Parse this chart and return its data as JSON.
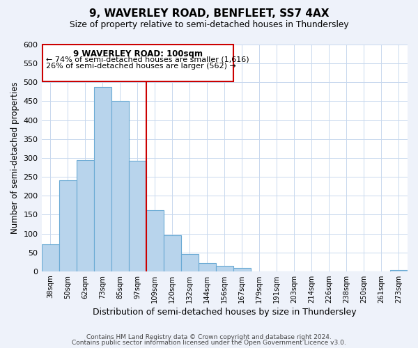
{
  "title": "9, WAVERLEY ROAD, BENFLEET, SS7 4AX",
  "subtitle": "Size of property relative to semi-detached houses in Thundersley",
  "xlabel": "Distribution of semi-detached houses by size in Thundersley",
  "ylabel": "Number of semi-detached properties",
  "bin_labels": [
    "38sqm",
    "50sqm",
    "62sqm",
    "73sqm",
    "85sqm",
    "97sqm",
    "109sqm",
    "120sqm",
    "132sqm",
    "144sqm",
    "156sqm",
    "167sqm",
    "179sqm",
    "191sqm",
    "203sqm",
    "214sqm",
    "226sqm",
    "238sqm",
    "250sqm",
    "261sqm",
    "273sqm"
  ],
  "bar_heights": [
    72,
    240,
    295,
    488,
    450,
    293,
    162,
    96,
    46,
    22,
    15,
    9,
    0,
    0,
    0,
    0,
    0,
    0,
    0,
    0,
    3
  ],
  "bar_color": "#b8d4ec",
  "bar_edge_color": "#6aaad4",
  "marker_index": 5,
  "marker_color": "#cc0000",
  "ylim": [
    0,
    600
  ],
  "yticks": [
    0,
    50,
    100,
    150,
    200,
    250,
    300,
    350,
    400,
    450,
    500,
    550,
    600
  ],
  "annotation_title": "9 WAVERLEY ROAD: 100sqm",
  "annotation_line1": "← 74% of semi-detached houses are smaller (1,616)",
  "annotation_line2": "26% of semi-detached houses are larger (562) →",
  "footer1": "Contains HM Land Registry data © Crown copyright and database right 2024.",
  "footer2": "Contains public sector information licensed under the Open Government Licence v3.0.",
  "background_color": "#eef2fa",
  "plot_bg_color": "#ffffff",
  "grid_color": "#c8d8ee"
}
